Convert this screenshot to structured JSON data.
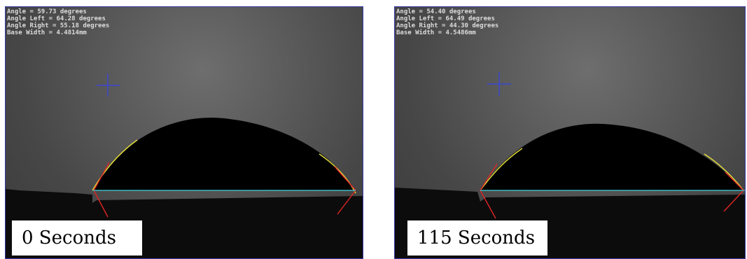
{
  "panels": [
    {
      "readout": {
        "angle": "Angle = 59.73 degrees",
        "angle_left": "Angle Left = 64.28 degrees",
        "angle_right": "Angle Right = 55.18 degrees",
        "base_width": "Base Width = 4.4814mm"
      },
      "caption": "0 Seconds"
    },
    {
      "readout": {
        "angle": "Angle = 54.40 degrees",
        "angle_left": "Angle Left = 64.49 degrees",
        "angle_right": "Angle Right = 44.30 degrees",
        "base_width": "Base Width = 4.5486mm"
      },
      "caption": "115 Seconds"
    }
  ],
  "colors": {
    "crosshair": "#3b46d6",
    "baseline": "#3fb8c0",
    "tangent": "#e02424",
    "edge_fit": "#e6e03a",
    "droplet": "#000000",
    "frame": "#3a3aa8"
  }
}
